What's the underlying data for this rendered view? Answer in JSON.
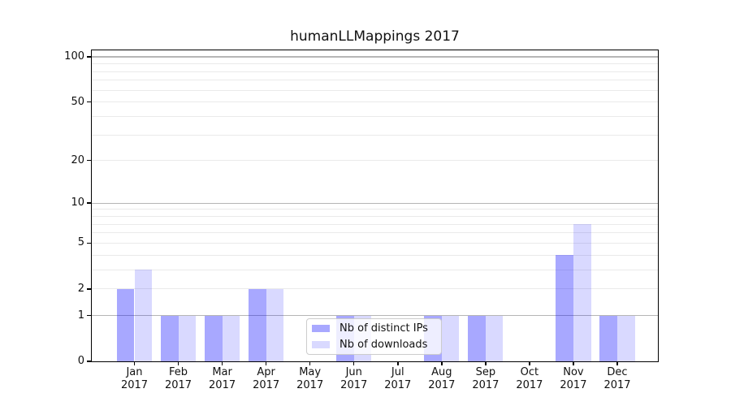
{
  "figure": {
    "title": "humanLLMappings 2017"
  },
  "chart_data": {
    "type": "bar",
    "title": "humanLLMappings 2017",
    "categories": [
      "Jan",
      "Feb",
      "Mar",
      "Apr",
      "May",
      "Jun",
      "Jul",
      "Aug",
      "Sep",
      "Oct",
      "Nov",
      "Dec"
    ],
    "year_label": "2017",
    "series": [
      {
        "name": "Nb of distinct IPs",
        "color": "rgba(0,0,255,0.34)",
        "values": [
          2,
          1,
          1,
          2,
          0,
          1,
          0,
          1,
          1,
          0,
          4,
          1
        ]
      },
      {
        "name": "Nb of downloads",
        "color": "rgba(0,0,255,0.15)",
        "values": [
          3,
          1,
          1,
          2,
          0,
          1,
          0,
          1,
          1,
          0,
          7,
          1
        ]
      }
    ],
    "xlabel": "",
    "ylabel": "",
    "y_scale": "log10(1+y)",
    "ylim": [
      0,
      111
    ],
    "y_ticks": [
      0,
      1,
      2,
      5,
      10,
      20,
      50,
      100
    ],
    "grid": "horizontal",
    "major_grid_values": [
      1,
      10,
      100
    ],
    "minor_grid_values": [
      2,
      3,
      4,
      5,
      6,
      7,
      8,
      9,
      20,
      30,
      40,
      50,
      60,
      70,
      80,
      90
    ],
    "legend_position": "lower center inside plot",
    "colors": {
      "bar_distinct_ips": "#a6a6fa",
      "bar_downloads": "#d9d9fc",
      "grid_major": "#b6b6b6",
      "grid_minor": "#eaeaea",
      "axis": "#000000",
      "background": "#ffffff"
    }
  }
}
